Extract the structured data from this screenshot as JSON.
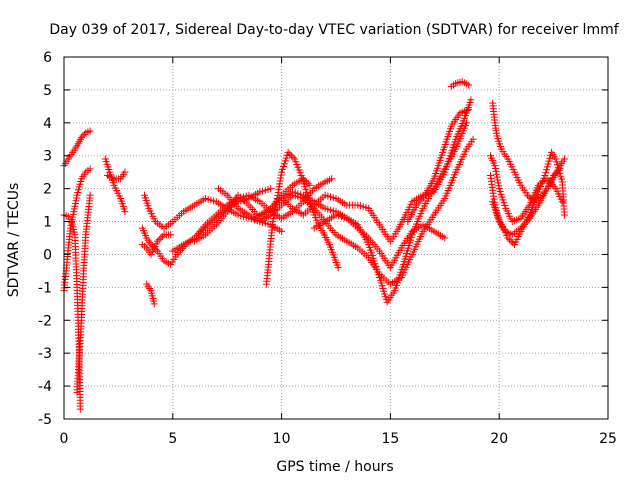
{
  "chart_data": {
    "type": "scatter",
    "title": "Day 039 of 2017, Sidereal Day-to-day VTEC variation (SDTVAR) for receiver lmmf",
    "xlabel": "GPS time / hours",
    "ylabel": "SDTVAR / TECUs",
    "xlim": [
      0,
      25
    ],
    "ylim": [
      -5,
      6
    ],
    "xticks": [
      0,
      5,
      10,
      15,
      20,
      25
    ],
    "yticks": [
      -5,
      -4,
      -3,
      -2,
      -1,
      0,
      1,
      2,
      3,
      4,
      5,
      6
    ],
    "grid": true,
    "marker": "+",
    "color": "#ff0000",
    "series": [
      {
        "name": "s1",
        "points": [
          [
            0.0,
            2.7
          ],
          [
            0.2,
            2.9
          ],
          [
            0.4,
            3.1
          ],
          [
            0.6,
            3.3
          ],
          [
            0.8,
            3.55
          ],
          [
            1.0,
            3.7
          ],
          [
            1.2,
            3.75
          ]
        ]
      },
      {
        "name": "s2",
        "points": [
          [
            0.0,
            1.2
          ],
          [
            0.2,
            1.15
          ],
          [
            0.35,
            1.0
          ],
          [
            0.5,
            0.6
          ],
          [
            0.6,
            -1.0
          ],
          [
            0.7,
            -3.0
          ],
          [
            0.75,
            -4.7
          ]
        ]
      },
      {
        "name": "s3",
        "points": [
          [
            0.0,
            -1.1
          ],
          [
            0.1,
            -0.5
          ],
          [
            0.2,
            0.2
          ],
          [
            0.3,
            0.8
          ],
          [
            0.45,
            1.3
          ],
          [
            0.6,
            1.8
          ],
          [
            0.8,
            2.3
          ],
          [
            1.0,
            2.5
          ],
          [
            1.2,
            2.6
          ]
        ]
      },
      {
        "name": "s4",
        "points": [
          [
            0.6,
            -4.2
          ],
          [
            0.8,
            -2.0
          ],
          [
            0.9,
            -0.5
          ],
          [
            1.0,
            0.6
          ],
          [
            1.1,
            1.2
          ],
          [
            1.2,
            1.8
          ]
        ]
      },
      {
        "name": "s5",
        "points": [
          [
            1.9,
            2.9
          ],
          [
            2.1,
            2.5
          ],
          [
            2.3,
            2.1
          ],
          [
            2.6,
            1.7
          ],
          [
            2.8,
            1.3
          ]
        ]
      },
      {
        "name": "s6",
        "points": [
          [
            2.0,
            2.4
          ],
          [
            2.3,
            2.3
          ],
          [
            2.6,
            2.3
          ],
          [
            2.8,
            2.5
          ]
        ]
      },
      {
        "name": "s7",
        "points": [
          [
            3.7,
            1.8
          ],
          [
            3.9,
            1.4
          ],
          [
            4.2,
            1.0
          ],
          [
            4.6,
            0.8
          ],
          [
            5.0,
            1.0
          ],
          [
            5.5,
            1.3
          ],
          [
            6.0,
            1.5
          ],
          [
            6.5,
            1.7
          ],
          [
            7.0,
            1.6
          ],
          [
            7.5,
            1.4
          ],
          [
            8.0,
            1.2
          ],
          [
            8.5,
            1.1
          ],
          [
            9.0,
            1.0
          ],
          [
            9.5,
            0.9
          ],
          [
            10.0,
            0.7
          ]
        ]
      },
      {
        "name": "s8",
        "points": [
          [
            3.6,
            0.8
          ],
          [
            3.8,
            0.5
          ],
          [
            4.0,
            0.3
          ],
          [
            4.3,
            0.1
          ],
          [
            4.6,
            -0.2
          ],
          [
            4.9,
            -0.3
          ],
          [
            5.2,
            0.0
          ],
          [
            5.6,
            0.3
          ],
          [
            6.0,
            0.5
          ],
          [
            6.5,
            0.8
          ],
          [
            7.0,
            1.1
          ],
          [
            7.5,
            1.4
          ],
          [
            8.0,
            1.6
          ],
          [
            8.5,
            1.7
          ],
          [
            9.0,
            1.9
          ],
          [
            9.5,
            2.0
          ]
        ]
      },
      {
        "name": "s9",
        "points": [
          [
            3.8,
            -0.9
          ],
          [
            4.0,
            -1.1
          ],
          [
            4.15,
            -1.5
          ]
        ]
      },
      {
        "name": "s10",
        "points": [
          [
            3.6,
            0.3
          ],
          [
            3.8,
            0.2
          ],
          [
            4.0,
            0.0
          ],
          [
            4.3,
            0.4
          ],
          [
            4.6,
            0.6
          ],
          [
            4.9,
            0.6
          ]
        ]
      },
      {
        "name": "s11",
        "points": [
          [
            5.0,
            0.1
          ],
          [
            5.5,
            0.3
          ],
          [
            6.0,
            0.5
          ],
          [
            6.5,
            0.9
          ],
          [
            7.0,
            1.2
          ],
          [
            7.5,
            1.5
          ],
          [
            8.0,
            1.7
          ],
          [
            8.5,
            1.8
          ],
          [
            9.0,
            1.6
          ],
          [
            9.5,
            1.3
          ],
          [
            10.0,
            1.1
          ],
          [
            10.5,
            1.3
          ],
          [
            11.0,
            1.6
          ],
          [
            11.5,
            2.0
          ],
          [
            12.0,
            2.2
          ],
          [
            12.3,
            2.3
          ]
        ]
      },
      {
        "name": "s12",
        "points": [
          [
            6.0,
            0.4
          ],
          [
            6.5,
            0.6
          ],
          [
            7.0,
            0.9
          ],
          [
            7.5,
            1.3
          ],
          [
            8.0,
            1.8
          ],
          [
            8.5,
            1.5
          ],
          [
            9.0,
            1.1
          ],
          [
            9.5,
            1.4
          ],
          [
            10.0,
            1.8
          ],
          [
            10.5,
            2.1
          ],
          [
            11.0,
            2.3
          ],
          [
            11.3,
            2.1
          ]
        ]
      },
      {
        "name": "s13",
        "points": [
          [
            7.1,
            2.0
          ],
          [
            7.5,
            1.8
          ],
          [
            8.0,
            1.4
          ],
          [
            8.5,
            1.2
          ],
          [
            9.0,
            1.0
          ],
          [
            9.5,
            1.2
          ],
          [
            10.0,
            1.5
          ],
          [
            10.5,
            1.8
          ],
          [
            11.0,
            1.7
          ],
          [
            11.5,
            1.4
          ],
          [
            12.0,
            1.0
          ],
          [
            12.5,
            0.6
          ],
          [
            13.0,
            0.4
          ],
          [
            13.5,
            0.2
          ],
          [
            14.0,
            -0.1
          ],
          [
            14.5,
            -0.6
          ],
          [
            15.0,
            -0.9
          ],
          [
            15.5,
            -0.7
          ],
          [
            16.0,
            0.0
          ],
          [
            16.5,
            0.7
          ],
          [
            17.0,
            1.2
          ],
          [
            17.5,
            1.7
          ],
          [
            18.0,
            2.5
          ],
          [
            18.5,
            3.2
          ],
          [
            18.8,
            3.5
          ]
        ]
      },
      {
        "name": "s14",
        "points": [
          [
            9.3,
            -0.9
          ],
          [
            9.4,
            -0.3
          ],
          [
            9.5,
            0.4
          ],
          [
            9.6,
            1.0
          ],
          [
            9.8,
            1.7
          ],
          [
            10.0,
            2.5
          ],
          [
            10.3,
            3.1
          ],
          [
            10.6,
            2.9
          ],
          [
            10.9,
            2.4
          ],
          [
            11.2,
            1.8
          ],
          [
            11.5,
            1.2
          ],
          [
            11.8,
            0.8
          ],
          [
            12.2,
            0.3
          ],
          [
            12.6,
            -0.4
          ]
        ]
      },
      {
        "name": "s15",
        "points": [
          [
            9.0,
            1.2
          ],
          [
            9.5,
            1.4
          ],
          [
            10.0,
            1.7
          ],
          [
            10.5,
            1.9
          ],
          [
            11.0,
            1.8
          ],
          [
            11.5,
            1.6
          ],
          [
            12.0,
            1.4
          ],
          [
            12.5,
            1.3
          ],
          [
            13.0,
            1.1
          ],
          [
            13.5,
            0.9
          ],
          [
            14.0,
            0.3
          ],
          [
            14.5,
            -0.7
          ],
          [
            14.85,
            -1.45
          ],
          [
            15.2,
            -1.1
          ],
          [
            15.6,
            -0.3
          ],
          [
            16.0,
            0.6
          ],
          [
            16.5,
            1.4
          ],
          [
            17.0,
            2.0
          ],
          [
            17.5,
            2.6
          ],
          [
            18.0,
            3.2
          ],
          [
            18.5,
            4.0
          ]
        ]
      },
      {
        "name": "s16",
        "points": [
          [
            10.0,
            1.7
          ],
          [
            10.5,
            1.4
          ],
          [
            11.0,
            1.2
          ],
          [
            11.5,
            1.5
          ],
          [
            12.0,
            1.8
          ],
          [
            12.5,
            1.7
          ],
          [
            13.0,
            1.5
          ],
          [
            13.5,
            1.5
          ],
          [
            14.0,
            1.4
          ],
          [
            14.5,
            0.9
          ],
          [
            15.0,
            0.4
          ],
          [
            15.3,
            0.7
          ],
          [
            15.7,
            1.2
          ],
          [
            16.0,
            1.6
          ],
          [
            16.5,
            1.8
          ],
          [
            17.0,
            1.9
          ],
          [
            17.5,
            2.5
          ],
          [
            18.0,
            3.5
          ],
          [
            18.5,
            4.3
          ],
          [
            18.7,
            4.7
          ]
        ]
      },
      {
        "name": "s17",
        "points": [
          [
            11.5,
            0.8
          ],
          [
            12.0,
            1.0
          ],
          [
            12.5,
            1.2
          ],
          [
            13.0,
            1.1
          ],
          [
            13.5,
            0.8
          ],
          [
            14.0,
            0.5
          ],
          [
            14.5,
            0.1
          ],
          [
            15.0,
            -0.4
          ],
          [
            15.5,
            0.2
          ],
          [
            16.0,
            0.7
          ],
          [
            16.5,
            0.9
          ],
          [
            17.0,
            0.7
          ],
          [
            17.5,
            0.5
          ]
        ]
      },
      {
        "name": "s18",
        "points": [
          [
            15.8,
            1.0
          ],
          [
            16.2,
            1.5
          ],
          [
            16.6,
            1.8
          ],
          [
            17.0,
            2.3
          ],
          [
            17.4,
            3.1
          ],
          [
            17.8,
            3.9
          ],
          [
            18.2,
            4.3
          ],
          [
            18.6,
            4.4
          ]
        ]
      },
      {
        "name": "s19",
        "points": [
          [
            17.8,
            5.1
          ],
          [
            18.0,
            5.2
          ],
          [
            18.3,
            5.25
          ],
          [
            18.6,
            5.15
          ]
        ]
      },
      {
        "name": "s20",
        "points": [
          [
            19.7,
            4.6
          ],
          [
            19.8,
            4.0
          ],
          [
            19.9,
            3.6
          ],
          [
            20.1,
            3.2
          ],
          [
            20.4,
            2.9
          ],
          [
            20.7,
            2.5
          ],
          [
            21.0,
            2.1
          ],
          [
            21.3,
            1.8
          ],
          [
            21.6,
            1.6
          ],
          [
            22.0,
            1.8
          ],
          [
            22.4,
            2.2
          ],
          [
            22.8,
            2.7
          ],
          [
            23.0,
            2.9
          ]
        ]
      },
      {
        "name": "s21",
        "points": [
          [
            19.6,
            2.4
          ],
          [
            19.8,
            1.5
          ],
          [
            20.0,
            1.0
          ],
          [
            20.3,
            0.7
          ],
          [
            20.6,
            0.6
          ],
          [
            21.0,
            0.8
          ],
          [
            21.4,
            1.1
          ],
          [
            21.8,
            1.5
          ],
          [
            22.2,
            2.0
          ],
          [
            22.5,
            2.4
          ],
          [
            22.8,
            2.6
          ]
        ]
      },
      {
        "name": "s22",
        "points": [
          [
            19.7,
            1.6
          ],
          [
            19.9,
            1.2
          ],
          [
            20.1,
            0.9
          ],
          [
            20.4,
            0.5
          ],
          [
            20.7,
            0.3
          ],
          [
            21.0,
            0.7
          ],
          [
            21.4,
            1.2
          ],
          [
            21.8,
            1.9
          ],
          [
            22.1,
            2.4
          ],
          [
            22.4,
            3.1
          ],
          [
            22.6,
            2.9
          ],
          [
            22.9,
            2.2
          ],
          [
            23.0,
            1.2
          ]
        ]
      },
      {
        "name": "s23",
        "points": [
          [
            19.6,
            3.0
          ],
          [
            19.8,
            2.7
          ],
          [
            20.0,
            2.0
          ],
          [
            20.3,
            1.4
          ],
          [
            20.6,
            1.0
          ],
          [
            21.0,
            1.1
          ],
          [
            21.4,
            1.5
          ],
          [
            21.8,
            2.1
          ],
          [
            22.2,
            2.3
          ],
          [
            22.6,
            2.0
          ],
          [
            22.9,
            1.6
          ]
        ]
      }
    ]
  }
}
